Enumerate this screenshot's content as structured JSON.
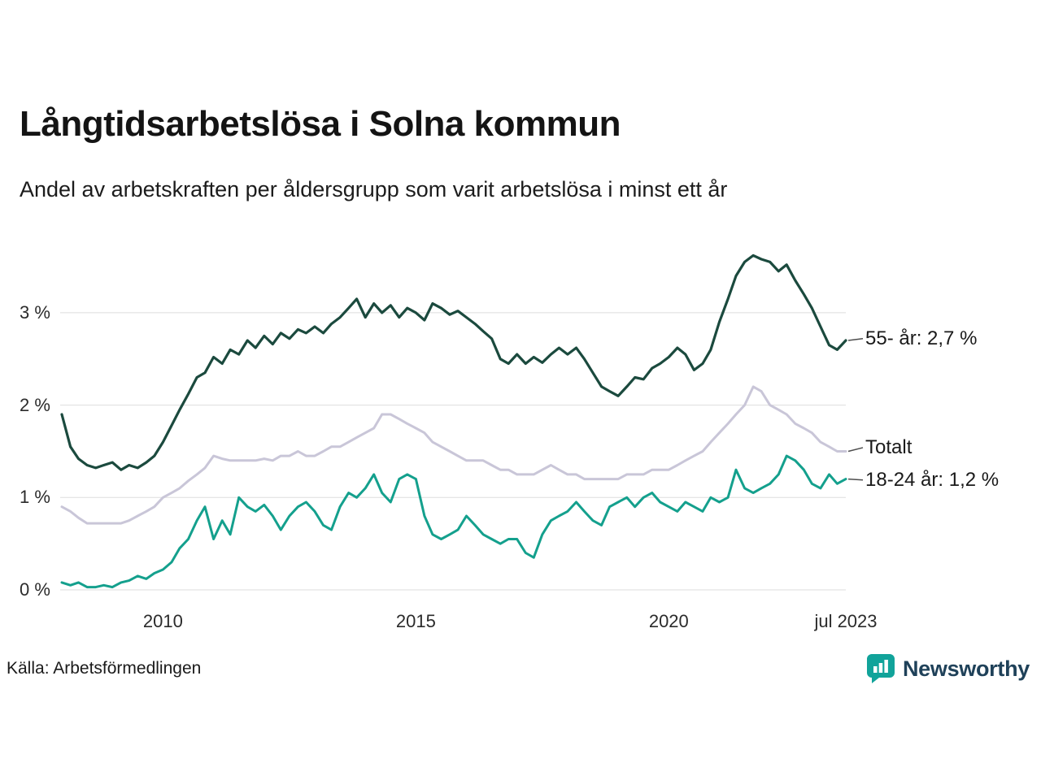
{
  "header": {
    "title": "Långtidsarbetslösa i Solna kommun",
    "subtitle": "Andel av arbetskraften per åldersgrupp som varit arbetslösa i minst ett år"
  },
  "footer": {
    "source": "Källa: Arbetsförmedlingen",
    "brand": "Newsworthy"
  },
  "colors": {
    "grid": "#dedede",
    "axis_text": "#2b2b2b",
    "label_text": "#1a1a1a",
    "connector": "#4d4d4d",
    "brand_icon": "#11a39a",
    "brand_text": "#1f4159"
  },
  "chart_data": {
    "type": "line",
    "title": "Långtidsarbetslösa i Solna kommun",
    "subtitle": "Andel av arbetskraften per åldersgrupp som varit arbetslösa i minst ett år",
    "grid": true,
    "legend_position": "right-end-labels",
    "x_axis": {
      "min": 2008.0,
      "max": 2023.5,
      "ticks": [
        {
          "value": 2010,
          "label": "2010"
        },
        {
          "value": 2015,
          "label": "2015"
        },
        {
          "value": 2020,
          "label": "2020"
        },
        {
          "value": 2023.5,
          "label": "jul 2023"
        }
      ]
    },
    "y_axis": {
      "min": 0,
      "max": 3.835,
      "unit": "%",
      "ticks": [
        {
          "value": 0,
          "label": "0 %"
        },
        {
          "value": 1,
          "label": "1 %"
        },
        {
          "value": 2,
          "label": "2 %"
        },
        {
          "value": 3,
          "label": "3 %"
        }
      ]
    },
    "x": [
      2008.0,
      2008.17,
      2008.33,
      2008.5,
      2008.67,
      2008.83,
      2009.0,
      2009.17,
      2009.33,
      2009.5,
      2009.67,
      2009.83,
      2010.0,
      2010.17,
      2010.33,
      2010.5,
      2010.67,
      2010.83,
      2011.0,
      2011.17,
      2011.33,
      2011.5,
      2011.67,
      2011.83,
      2012.0,
      2012.17,
      2012.33,
      2012.5,
      2012.67,
      2012.83,
      2013.0,
      2013.17,
      2013.33,
      2013.5,
      2013.67,
      2013.83,
      2014.0,
      2014.17,
      2014.33,
      2014.5,
      2014.67,
      2014.83,
      2015.0,
      2015.17,
      2015.33,
      2015.5,
      2015.67,
      2015.83,
      2016.0,
      2016.17,
      2016.33,
      2016.5,
      2016.67,
      2016.83,
      2017.0,
      2017.17,
      2017.33,
      2017.5,
      2017.67,
      2017.83,
      2018.0,
      2018.17,
      2018.33,
      2018.5,
      2018.67,
      2018.83,
      2019.0,
      2019.17,
      2019.33,
      2019.5,
      2019.67,
      2019.83,
      2020.0,
      2020.17,
      2020.33,
      2020.5,
      2020.67,
      2020.83,
      2021.0,
      2021.17,
      2021.33,
      2021.5,
      2021.67,
      2021.83,
      2022.0,
      2022.17,
      2022.33,
      2022.5,
      2022.67,
      2022.83,
      2023.0,
      2023.17,
      2023.33,
      2023.5
    ],
    "series": [
      {
        "id": "55-ar",
        "name": "55- år",
        "label": "55- år: 2,7 %",
        "last_value": 2.7,
        "label_anchor": 2.72,
        "color": "#1b4a3e",
        "stroke_width": 3.2,
        "values": [
          1.9,
          1.55,
          1.42,
          1.35,
          1.32,
          1.35,
          1.38,
          1.3,
          1.35,
          1.32,
          1.38,
          1.45,
          1.6,
          1.78,
          1.95,
          2.12,
          2.3,
          2.35,
          2.52,
          2.45,
          2.6,
          2.55,
          2.7,
          2.62,
          2.75,
          2.66,
          2.78,
          2.72,
          2.82,
          2.78,
          2.85,
          2.78,
          2.88,
          2.95,
          3.05,
          3.15,
          2.95,
          3.1,
          3.0,
          3.08,
          2.95,
          3.05,
          3.0,
          2.92,
          3.1,
          3.05,
          2.98,
          3.02,
          2.95,
          2.88,
          2.8,
          2.72,
          2.5,
          2.45,
          2.55,
          2.45,
          2.52,
          2.46,
          2.55,
          2.62,
          2.55,
          2.62,
          2.5,
          2.35,
          2.2,
          2.15,
          2.1,
          2.2,
          2.3,
          2.28,
          2.4,
          2.45,
          2.52,
          2.62,
          2.55,
          2.38,
          2.45,
          2.6,
          2.9,
          3.15,
          3.4,
          3.55,
          3.62,
          3.58,
          3.55,
          3.45,
          3.52,
          3.35,
          3.2,
          3.05,
          2.85,
          2.65,
          2.6,
          2.7
        ]
      },
      {
        "id": "totalt",
        "name": "Totalt",
        "label": "Totalt",
        "last_value": 1.5,
        "label_anchor": 1.54,
        "color": "#c9c6d8",
        "stroke_width": 3,
        "values": [
          0.9,
          0.85,
          0.78,
          0.72,
          0.72,
          0.72,
          0.72,
          0.72,
          0.75,
          0.8,
          0.85,
          0.9,
          1.0,
          1.05,
          1.1,
          1.18,
          1.25,
          1.32,
          1.45,
          1.42,
          1.4,
          1.4,
          1.4,
          1.4,
          1.42,
          1.4,
          1.45,
          1.45,
          1.5,
          1.45,
          1.45,
          1.5,
          1.55,
          1.55,
          1.6,
          1.65,
          1.7,
          1.75,
          1.9,
          1.9,
          1.85,
          1.8,
          1.75,
          1.7,
          1.6,
          1.55,
          1.5,
          1.45,
          1.4,
          1.4,
          1.4,
          1.35,
          1.3,
          1.3,
          1.25,
          1.25,
          1.25,
          1.3,
          1.35,
          1.3,
          1.25,
          1.25,
          1.2,
          1.2,
          1.2,
          1.2,
          1.2,
          1.25,
          1.25,
          1.25,
          1.3,
          1.3,
          1.3,
          1.35,
          1.4,
          1.45,
          1.5,
          1.6,
          1.7,
          1.8,
          1.9,
          2.0,
          2.2,
          2.15,
          2.0,
          1.95,
          1.9,
          1.8,
          1.75,
          1.7,
          1.6,
          1.55,
          1.5,
          1.5
        ]
      },
      {
        "id": "18-24-ar",
        "name": "18-24 år",
        "label": "18-24 år: 1,2 %",
        "last_value": 1.2,
        "label_anchor": 1.19,
        "color": "#14a08d",
        "stroke_width": 3,
        "values": [
          0.08,
          0.05,
          0.08,
          0.03,
          0.03,
          0.05,
          0.03,
          0.08,
          0.1,
          0.15,
          0.12,
          0.18,
          0.22,
          0.3,
          0.45,
          0.55,
          0.75,
          0.9,
          0.55,
          0.75,
          0.6,
          1.0,
          0.9,
          0.85,
          0.92,
          0.8,
          0.65,
          0.8,
          0.9,
          0.95,
          0.85,
          0.7,
          0.65,
          0.9,
          1.05,
          1.0,
          1.1,
          1.25,
          1.05,
          0.95,
          1.2,
          1.25,
          1.2,
          0.8,
          0.6,
          0.55,
          0.6,
          0.65,
          0.8,
          0.7,
          0.6,
          0.55,
          0.5,
          0.55,
          0.55,
          0.4,
          0.35,
          0.6,
          0.75,
          0.8,
          0.85,
          0.95,
          0.85,
          0.75,
          0.7,
          0.9,
          0.95,
          1.0,
          0.9,
          1.0,
          1.05,
          0.95,
          0.9,
          0.85,
          0.95,
          0.9,
          0.85,
          1.0,
          0.95,
          1.0,
          1.3,
          1.1,
          1.05,
          1.1,
          1.15,
          1.25,
          1.45,
          1.4,
          1.3,
          1.15,
          1.1,
          1.25,
          1.15,
          1.2
        ]
      }
    ]
  }
}
